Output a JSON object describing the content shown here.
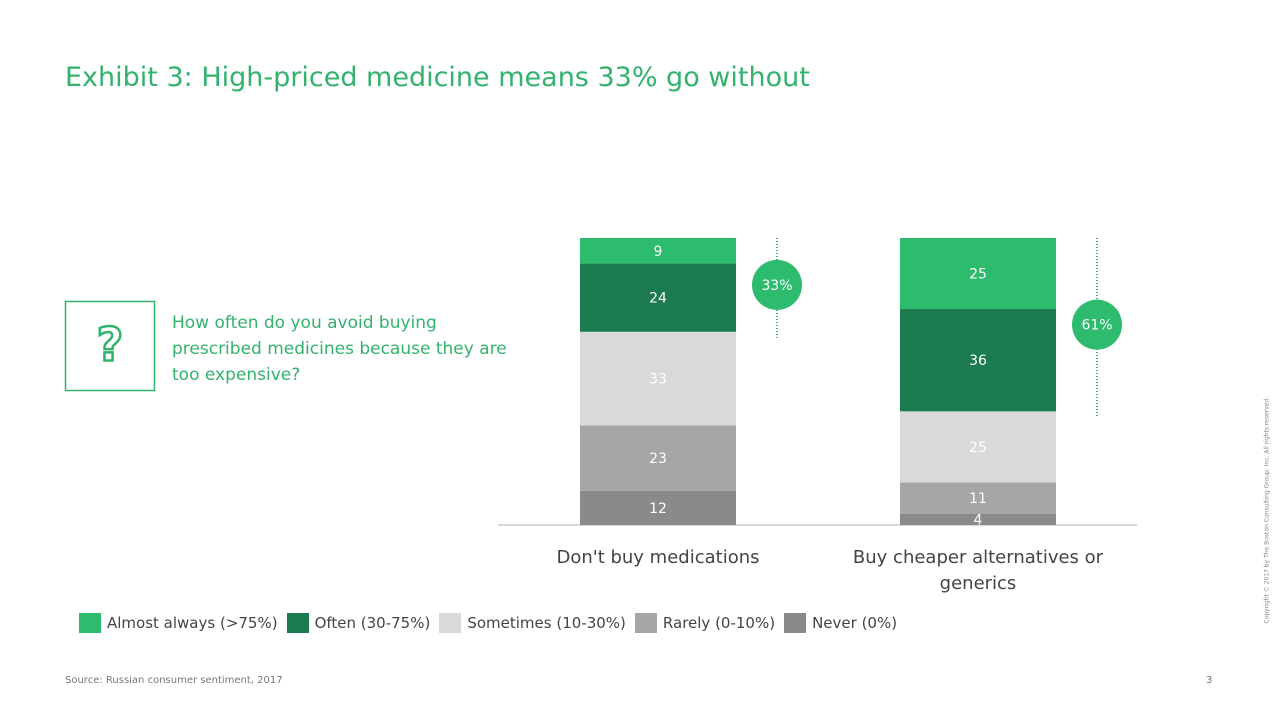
{
  "title": "Exhibit 3: High-priced medicine means 33% go without",
  "question": "How often do you avoid buying prescribed medicines because they are too expensive?",
  "chart_data": {
    "type": "bar",
    "stacked": true,
    "categories": [
      "Don't buy medications",
      "Buy cheaper alternatives or generics"
    ],
    "series": [
      {
        "name": "Almost always (>75%)",
        "color": "#2dbb6e",
        "values": [
          9,
          25
        ]
      },
      {
        "name": "Often (30-75%)",
        "color": "#1b7a4f",
        "values": [
          24,
          36
        ]
      },
      {
        "name": "Sometimes (10-30%)",
        "color": "#d9d9d9",
        "values": [
          33,
          25
        ]
      },
      {
        "name": "Rarely (0-10%)",
        "color": "#a6a6a6",
        "values": [
          23,
          11
        ]
      },
      {
        "name": "Never (0%)",
        "color": "#8a8a8a",
        "values": [
          12,
          4
        ]
      }
    ],
    "annotations": [
      "33%",
      "61%"
    ],
    "legend": "bottom"
  },
  "source": "Source: Russian consumer sentiment, 2017",
  "page_number": "3",
  "copyright": "Copyright © 2017 by The Boston Consulting Group, Inc. All rights reserved."
}
